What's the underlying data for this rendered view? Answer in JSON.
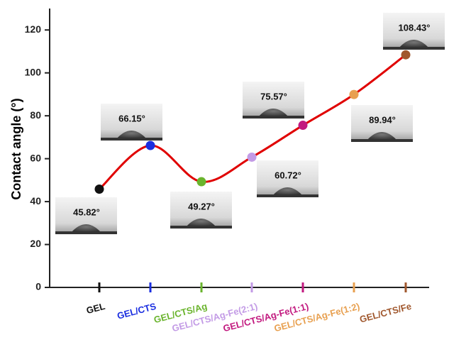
{
  "chart_data": {
    "type": "line",
    "y_label": "Contact angle (°)",
    "categories": [
      "GEL",
      "GEL/CTS",
      "GEL/CTS/Ag",
      "GEL/CTS/Ag-Fe(2:1)",
      "GEL/CTS/Ag-Fe(1:1)",
      "GEL/CTS/Ag-Fe(1:2)",
      "GEL/CTS/Fe"
    ],
    "values": [
      45.82,
      66.15,
      49.27,
      60.72,
      75.57,
      89.94,
      108.43
    ],
    "value_labels": [
      "45.82°",
      "66.15°",
      "49.27°",
      "60.72°",
      "75.57°",
      "89.94°",
      "108.43°"
    ],
    "colors": [
      "#111111",
      "#1a2ee0",
      "#6ab42d",
      "#c39be6",
      "#c2197f",
      "#e8a050",
      "#a0572d"
    ],
    "line_color": "#e00000",
    "ylim": [
      0,
      130
    ],
    "yticks": [
      0,
      20,
      40,
      60,
      80,
      100,
      120
    ]
  }
}
